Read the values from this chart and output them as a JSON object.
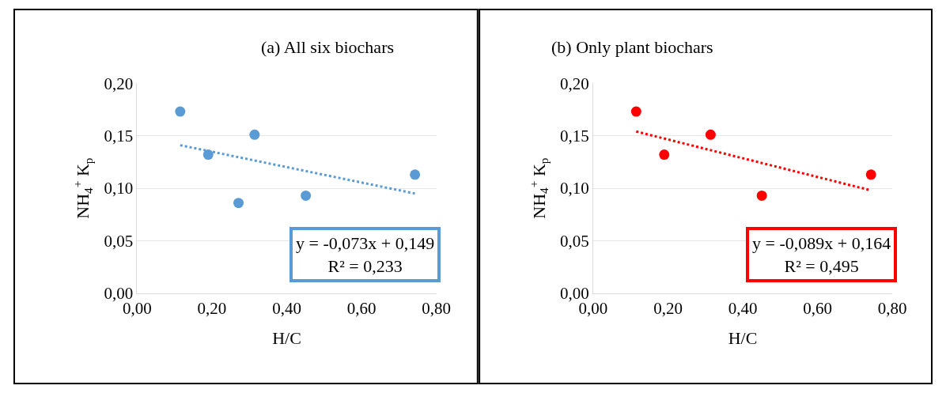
{
  "chart_data": [
    {
      "type": "scatter",
      "title": "(a) All six biochars",
      "xlabel": "H/C",
      "ylabel": "NH$_{4}$$^{+}$ K$_{p}$",
      "xlim": [
        0,
        0.8
      ],
      "ylim": [
        0,
        0.2
      ],
      "xticks": [
        {
          "value": 0,
          "label": "0,00"
        },
        {
          "value": 0.2,
          "label": "0,20"
        },
        {
          "value": 0.4,
          "label": "0,40"
        },
        {
          "value": 0.6,
          "label": "0,60"
        },
        {
          "value": 0.8,
          "label": "0,80"
        }
      ],
      "yticks": [
        {
          "value": 0,
          "label": "0,00"
        },
        {
          "value": 0.05,
          "label": "0,05"
        },
        {
          "value": 0.1,
          "label": "0,10"
        },
        {
          "value": 0.15,
          "label": "0,15"
        },
        {
          "value": 0.2,
          "label": "0,20"
        }
      ],
      "grid": "y",
      "series": [
        {
          "marker": "circle",
          "color": "#5b9bd5",
          "x": [
            0.115,
            0.19,
            0.314,
            0.271,
            0.451,
            0.743
          ],
          "values": [
            0.173,
            0.132,
            0.151,
            0.086,
            0.093,
            0.113
          ]
        },
        {
          "type": "line",
          "marker": "none",
          "color": "#5b9bd5",
          "line_style": "dotted",
          "x": [
            0.115,
            0.743
          ],
          "values": [
            0.141,
            0.095
          ]
        }
      ],
      "annotations": [
        "y = -0,073x + 0,149\nR² = 0,233"
      ]
    },
    {
      "type": "scatter",
      "title": "(b) Only plant biochars",
      "xlabel": "H/C",
      "ylabel": "NH$_{4}$$^{+}$ K$_{p}$",
      "xlim": [
        0,
        0.8
      ],
      "ylim": [
        0,
        0.2
      ],
      "xticks": [
        {
          "value": 0,
          "label": "0,00"
        },
        {
          "value": 0.2,
          "label": "0,20"
        },
        {
          "value": 0.4,
          "label": "0,40"
        },
        {
          "value": 0.6,
          "label": "0,60"
        },
        {
          "value": 0.8,
          "label": "0,80"
        }
      ],
      "yticks": [
        {
          "value": 0,
          "label": "0,00"
        },
        {
          "value": 0.05,
          "label": "0,05"
        },
        {
          "value": 0.1,
          "label": "0,10"
        },
        {
          "value": 0.15,
          "label": "0,15"
        },
        {
          "value": 0.2,
          "label": "0,20"
        }
      ],
      "grid": "y",
      "series": [
        {
          "marker": "circle",
          "color": "#ff0000",
          "x": [
            0.115,
            0.19,
            0.314,
            0.451,
            0.743
          ],
          "values": [
            0.173,
            0.132,
            0.151,
            0.093,
            0.113
          ]
        },
        {
          "type": "line",
          "marker": "none",
          "color": "#ff0000",
          "line_style": "dotted",
          "x": [
            0.115,
            0.743
          ],
          "values": [
            0.154,
            0.098
          ]
        }
      ],
      "annotations": [
        "y = -0,089x + 0,164\nR² = 0,495"
      ]
    }
  ]
}
